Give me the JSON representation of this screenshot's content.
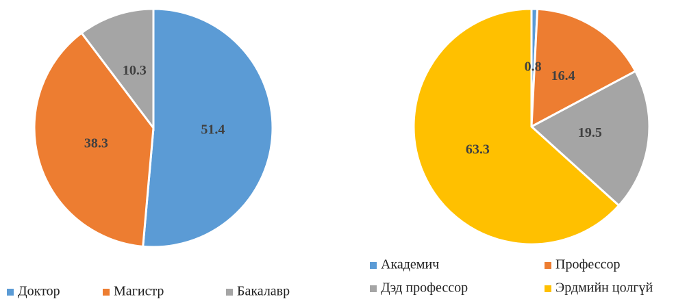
{
  "chart_data": [
    {
      "type": "pie",
      "categories": [
        "Доктор",
        "Магистр",
        "Бакалавр"
      ],
      "values": [
        51.4,
        38.3,
        10.3
      ],
      "colors": [
        "#5b9bd5",
        "#ed7d31",
        "#a5a5a5"
      ],
      "legend": "bottom"
    },
    {
      "type": "pie",
      "categories": [
        "Академич",
        "Профессор",
        "Дэд профессор",
        "Эрдмийн цолгүй"
      ],
      "values": [
        0.8,
        16.4,
        19.5,
        63.3
      ],
      "colors": [
        "#5b9bd5",
        "#ed7d31",
        "#a5a5a5",
        "#ffc000"
      ],
      "legend": "bottom"
    }
  ]
}
